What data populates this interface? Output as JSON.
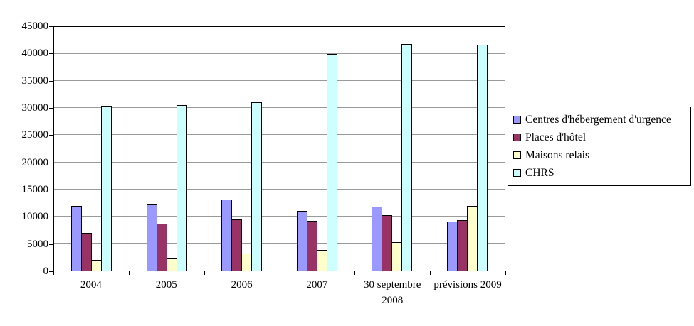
{
  "chart_data": {
    "type": "bar",
    "title": "",
    "xlabel": "",
    "ylabel": "",
    "categories": [
      "2004",
      "2005",
      "2006",
      "2007",
      "30 septembre 2008",
      "prévisions 2009"
    ],
    "series": [
      {
        "name": "Centres d'hébergement d'urgence",
        "color": "#9999ff",
        "values": [
          12000,
          12300,
          13100,
          11000,
          11800,
          9000
        ]
      },
      {
        "name": "Places d'hôtel",
        "color": "#993366",
        "values": [
          7000,
          8600,
          9400,
          9200,
          10300,
          9300
        ]
      },
      {
        "name": "Maisons relais",
        "color": "#ffffcc",
        "values": [
          2000,
          2400,
          3200,
          3800,
          5200,
          12000
        ]
      },
      {
        "name": "CHRS",
        "color": "#ccffff",
        "values": [
          30400,
          30600,
          31100,
          40000,
          41800,
          41700
        ]
      }
    ],
    "ylim": [
      0,
      45000
    ],
    "yticks": [
      0,
      5000,
      10000,
      15000,
      20000,
      25000,
      30000,
      35000,
      40000,
      45000
    ],
    "grid": true,
    "legend_position": "right",
    "plot_border_color": "#000000",
    "gridline_color": "#9a9a9a"
  }
}
